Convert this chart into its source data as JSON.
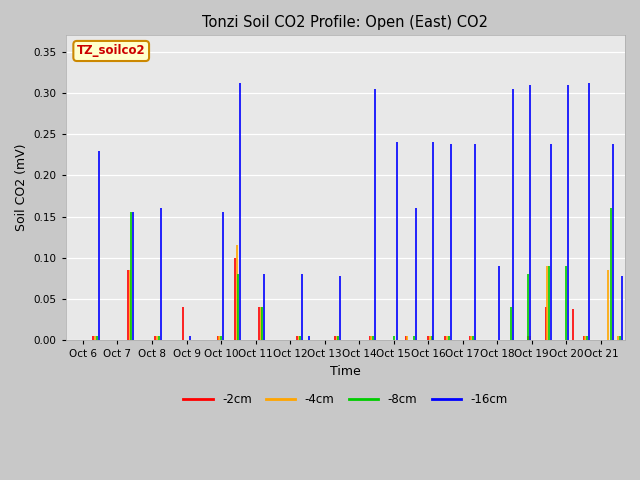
{
  "title": "Tonzi Soil CO2 Profile: Open (East) CO2",
  "ylabel": "Soil CO2 (mV)",
  "xlabel": "Time",
  "legend_label": "TZ_soilco2",
  "ylim": [
    0.0,
    0.37
  ],
  "yticks": [
    0.0,
    0.05,
    0.1,
    0.15,
    0.2,
    0.25,
    0.3,
    0.35
  ],
  "series_labels": [
    "-2cm",
    "-4cm",
    "-8cm",
    "-16cm"
  ],
  "series_colors": [
    "#ff0000",
    "#ffa500",
    "#00cc00",
    "#0000ff"
  ],
  "fig_bg": "#c8c8c8",
  "ax_bg": "#e8e8e8",
  "grid_color": "#ffffff",
  "spikes": {
    "-2cm": [
      [
        6.3,
        0.005
      ],
      [
        7.3,
        0.085
      ],
      [
        8.1,
        0.005
      ],
      [
        8.9,
        0.04
      ],
      [
        9.9,
        0.005
      ],
      [
        10.4,
        0.1
      ],
      [
        11.1,
        0.04
      ],
      [
        12.2,
        0.005
      ],
      [
        13.3,
        0.005
      ],
      [
        14.3,
        0.005
      ],
      [
        15.35,
        0.005
      ],
      [
        16.0,
        0.005
      ],
      [
        16.5,
        0.005
      ],
      [
        17.2,
        0.005
      ],
      [
        18.9,
        0.005
      ],
      [
        19.4,
        0.04
      ],
      [
        20.5,
        0.005
      ],
      [
        20.2,
        0.038
      ]
    ],
    "-4cm": [
      [
        6.35,
        0.005
      ],
      [
        7.35,
        0.085
      ],
      [
        8.15,
        0.005
      ],
      [
        9.95,
        0.005
      ],
      [
        10.45,
        0.115
      ],
      [
        11.15,
        0.04
      ],
      [
        12.25,
        0.005
      ],
      [
        13.35,
        0.005
      ],
      [
        14.35,
        0.005
      ],
      [
        15.4,
        0.005
      ],
      [
        16.05,
        0.005
      ],
      [
        16.55,
        0.005
      ],
      [
        17.25,
        0.005
      ],
      [
        18.95,
        0.005
      ],
      [
        19.45,
        0.09
      ],
      [
        20.55,
        0.005
      ],
      [
        21.2,
        0.085
      ],
      [
        21.5,
        0.005
      ]
    ],
    "-8cm": [
      [
        6.4,
        0.005
      ],
      [
        7.4,
        0.155
      ],
      [
        8.2,
        0.005
      ],
      [
        10.0,
        0.005
      ],
      [
        10.5,
        0.08
      ],
      [
        11.2,
        0.04
      ],
      [
        12.3,
        0.005
      ],
      [
        13.4,
        0.005
      ],
      [
        14.4,
        0.005
      ],
      [
        15.0,
        0.005
      ],
      [
        15.6,
        0.005
      ],
      [
        16.1,
        0.005
      ],
      [
        16.6,
        0.005
      ],
      [
        17.3,
        0.005
      ],
      [
        18.4,
        0.04
      ],
      [
        18.9,
        0.08
      ],
      [
        19.5,
        0.09
      ],
      [
        20.0,
        0.09
      ],
      [
        20.6,
        0.005
      ],
      [
        21.3,
        0.16
      ],
      [
        21.55,
        0.005
      ]
    ],
    "-16cm": [
      [
        6.45,
        0.23
      ],
      [
        7.45,
        0.155
      ],
      [
        8.25,
        0.16
      ],
      [
        9.1,
        0.005
      ],
      [
        10.05,
        0.155
      ],
      [
        10.55,
        0.312
      ],
      [
        11.25,
        0.08
      ],
      [
        12.35,
        0.08
      ],
      [
        12.55,
        0.005
      ],
      [
        13.45,
        0.078
      ],
      [
        14.45,
        0.305
      ],
      [
        15.1,
        0.24
      ],
      [
        15.65,
        0.16
      ],
      [
        16.15,
        0.24
      ],
      [
        16.65,
        0.238
      ],
      [
        17.35,
        0.238
      ],
      [
        18.05,
        0.09
      ],
      [
        18.45,
        0.305
      ],
      [
        18.95,
        0.31
      ],
      [
        19.55,
        0.238
      ],
      [
        20.05,
        0.31
      ],
      [
        20.65,
        0.312
      ],
      [
        21.35,
        0.238
      ],
      [
        21.6,
        0.078
      ]
    ]
  },
  "xtick_positions": [
    6,
    7,
    8,
    9,
    10,
    11,
    12,
    13,
    14,
    15,
    16,
    17,
    18,
    19,
    20,
    21
  ],
  "xtick_labels": [
    "Oct 6",
    "Oct 7",
    "Oct 8",
    "Oct 9",
    "Oct 10",
    "Oct 11",
    "Oct 12",
    "Oct 13",
    "Oct 14",
    "Oct 15",
    "Oct 16",
    "Oct 17",
    "Oct 18",
    "Oct 19",
    "Oct 20",
    "Oct 21"
  ],
  "xlim": [
    5.5,
    21.7
  ]
}
